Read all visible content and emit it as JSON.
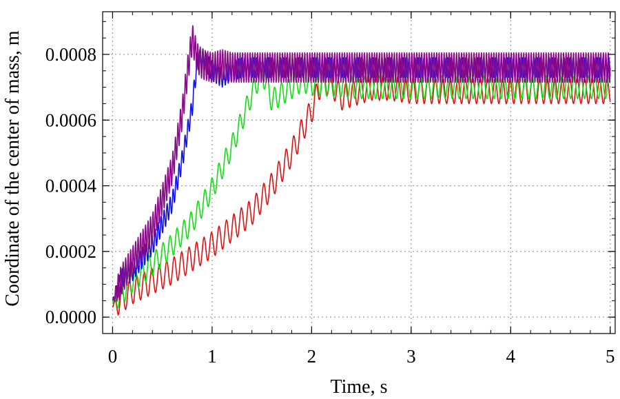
{
  "chart_data": {
    "type": "line",
    "title": "",
    "xlabel": "Time, s",
    "ylabel": "Coordinate of the center of mass, m",
    "xlim": [
      -0.1,
      5.05
    ],
    "ylim": [
      -5e-05,
      0.00093
    ],
    "x_ticks": [
      0,
      1,
      2,
      3,
      4,
      5
    ],
    "x_tick_labels": [
      "0",
      "1",
      "2",
      "3",
      "4",
      "5"
    ],
    "y_ticks": [
      0,
      0.0002,
      0.0004,
      0.0006,
      0.0008
    ],
    "y_tick_labels": [
      "0.0000",
      "0.0002",
      "0.0004",
      "0.0006",
      "0.0008"
    ],
    "grid": true,
    "legend": "none",
    "series": [
      {
        "color": "#e01010",
        "x": [
          0,
          0.2,
          0.4,
          0.6,
          0.8,
          1.0,
          1.2,
          1.4,
          1.6,
          1.8,
          2.0,
          2.1,
          2.2,
          2.3,
          2.4,
          2.6,
          2.8,
          3.0,
          4.0,
          5.0
        ],
        "y": [
          3e-05,
          8e-05,
          0.00011,
          0.00014,
          0.00018,
          0.00022,
          0.00027,
          0.00032,
          0.0004,
          0.0005,
          0.00063,
          0.00072,
          0.00071,
          0.00067,
          0.00068,
          0.0007,
          0.0007,
          0.00069,
          0.00069,
          0.00069
        ],
        "oscillation_amplitude": 4e-05,
        "oscillation_period": 0.075
      },
      {
        "color": "#10e010",
        "x": [
          0,
          0.2,
          0.4,
          0.6,
          0.8,
          1.0,
          1.2,
          1.4,
          1.5,
          1.6,
          1.7,
          1.8,
          1.9,
          2.0,
          2.5,
          3.0,
          4.0,
          5.0
        ],
        "y": [
          4e-05,
          0.00011,
          0.00016,
          0.00022,
          0.00029,
          0.00039,
          0.00052,
          0.00068,
          0.00075,
          0.00066,
          0.00068,
          0.0007,
          0.00072,
          0.00071,
          0.0007,
          0.0007,
          0.0007,
          0.0007
        ],
        "oscillation_amplitude": 3.5e-05,
        "oscillation_period": 0.07
      },
      {
        "color": "#1010f0",
        "x": [
          0,
          0.1,
          0.2,
          0.4,
          0.6,
          0.7,
          0.8,
          0.85,
          0.9,
          1.0,
          1.1,
          1.2,
          1.3,
          1.5,
          2.0,
          3.0,
          4.0,
          5.0
        ],
        "y": [
          5e-05,
          0.00012,
          0.00014,
          0.00022,
          0.00035,
          0.00048,
          0.00064,
          0.00078,
          0.00079,
          0.00075,
          0.00073,
          0.00075,
          0.00076,
          0.00076,
          0.00076,
          0.00076,
          0.00076,
          0.00076
        ],
        "oscillation_amplitude": 3e-05,
        "oscillation_period": 0.03
      },
      {
        "color": "#8a0a8a",
        "x": [
          0,
          0.1,
          0.2,
          0.4,
          0.6,
          0.7,
          0.75,
          0.8,
          0.85,
          0.9,
          1.0,
          1.1,
          1.2,
          1.5,
          2.0,
          3.0,
          4.0,
          5.0
        ],
        "y": [
          5e-05,
          0.00012,
          0.00017,
          0.00027,
          0.00045,
          0.00062,
          0.00074,
          0.00085,
          0.00079,
          0.00077,
          0.00076,
          0.00077,
          0.00076,
          0.00076,
          0.00076,
          0.00076,
          0.00076,
          0.00076
        ],
        "oscillation_amplitude": 4.5e-05,
        "oscillation_period": 0.025
      }
    ]
  }
}
